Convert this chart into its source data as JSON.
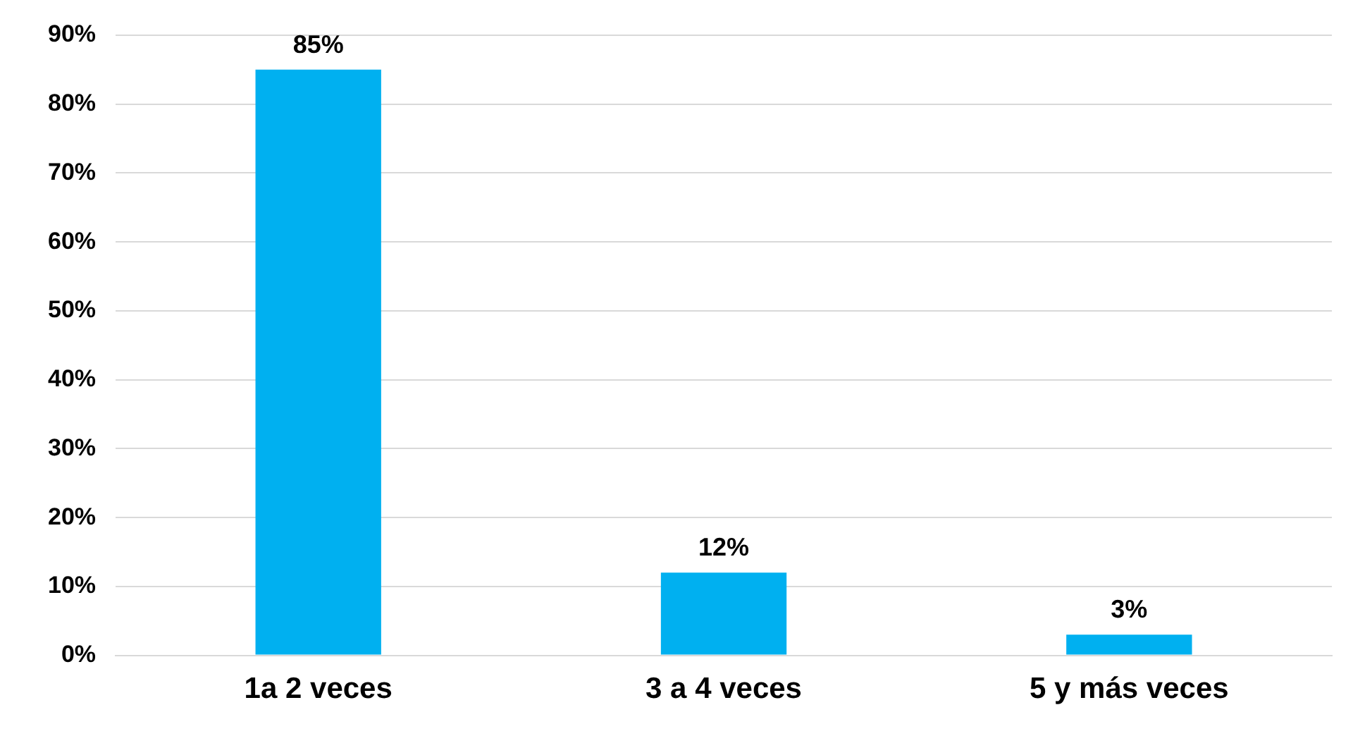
{
  "chart_data": {
    "type": "bar",
    "categories": [
      "1a 2 veces",
      "3 a 4 veces",
      "5 y más veces"
    ],
    "values": [
      85,
      12,
      3
    ],
    "color": "#00b0f0",
    "ylim": [
      0,
      90
    ],
    "yticks": [
      {
        "value": 0,
        "label": "0%"
      },
      {
        "value": 10,
        "label": "10%"
      },
      {
        "value": 20,
        "label": "20%"
      },
      {
        "value": 30,
        "label": "30%"
      },
      {
        "value": 40,
        "label": "40%"
      },
      {
        "value": 50,
        "label": "50%"
      },
      {
        "value": 60,
        "label": "60%"
      },
      {
        "value": 70,
        "label": "70%"
      },
      {
        "value": 80,
        "label": "80%"
      },
      {
        "value": 90,
        "label": "90%"
      }
    ],
    "value_labels": [
      "85%",
      "12%",
      "3%"
    ],
    "grid": "y",
    "legend": false
  }
}
